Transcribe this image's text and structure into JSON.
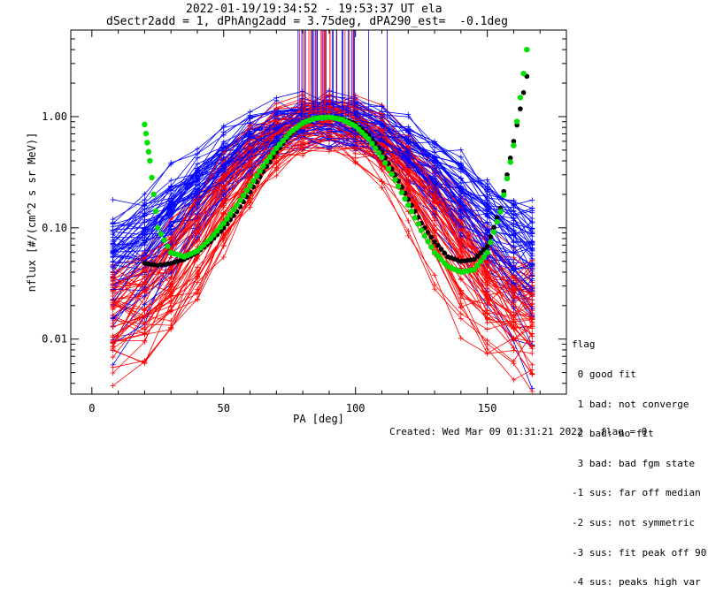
{
  "chart_data": {
    "type": "line",
    "title_line1": "2022-01-19/19:34:52 - 19:53:37 UT ela",
    "title_line2": "dSectr2add = 1, dPhAng2add = 3.75deg, dPA290_est=  -0.1deg",
    "xlabel": "PA [deg]",
    "ylabel": "nflux [#/(cm^2 s sr MeV)]",
    "xlim": [
      -8,
      180
    ],
    "ylim": [
      0.0032,
      6.0
    ],
    "yscale": "log",
    "x_ticks": [
      0,
      50,
      100,
      150
    ],
    "x_tick_labels": [
      "0",
      "50",
      "100",
      "150"
    ],
    "y_ticks": [
      0.01,
      0.1,
      1.0
    ],
    "y_tick_labels": [
      "0.01",
      "0.10",
      "1.00"
    ],
    "colors": {
      "red_series": "#ff0000",
      "blue_series": "#0000ff",
      "black_fit": "#000000",
      "green_fit": "#00e000"
    },
    "series": [
      {
        "color": "black",
        "style": "dots",
        "x": [
          20,
          25,
          30,
          35,
          40,
          45,
          50,
          55,
          60,
          65,
          70,
          75,
          80,
          85,
          90,
          95,
          100,
          105,
          110,
          115,
          120,
          125,
          130,
          135,
          140,
          145,
          150,
          155,
          160,
          165
        ],
        "y": [
          0.048,
          0.046,
          0.048,
          0.052,
          0.06,
          0.075,
          0.1,
          0.14,
          0.21,
          0.32,
          0.48,
          0.68,
          0.88,
          0.98,
          0.99,
          0.96,
          0.86,
          0.68,
          0.48,
          0.3,
          0.18,
          0.11,
          0.075,
          0.055,
          0.05,
          0.052,
          0.068,
          0.15,
          0.6,
          2.3
        ]
      },
      {
        "color": "green",
        "style": "dots",
        "x": [
          20,
          22,
          25,
          30,
          35,
          40,
          45,
          50,
          55,
          60,
          65,
          70,
          75,
          80,
          85,
          90,
          95,
          100,
          105,
          110,
          115,
          120,
          125,
          130,
          135,
          140,
          145,
          150,
          155,
          160,
          165
        ],
        "y": [
          0.85,
          0.4,
          0.1,
          0.06,
          0.055,
          0.062,
          0.08,
          0.11,
          0.16,
          0.24,
          0.36,
          0.52,
          0.71,
          0.88,
          0.97,
          0.99,
          0.94,
          0.82,
          0.63,
          0.43,
          0.27,
          0.16,
          0.095,
          0.06,
          0.045,
          0.04,
          0.042,
          0.06,
          0.14,
          0.55,
          4.0
        ]
      }
    ],
    "legend": {
      "title": "flag",
      "entries": [
        " 0 good fit",
        " 1 bad: not converge",
        " 2 bad: no fit",
        " 3 bad: bad fgm state",
        "-1 sus: far off median",
        "-2 sus: not symmetric",
        "-3 sus: fit peak off 90",
        "-4 sus: peaks high var"
      ],
      "placement": "right"
    },
    "footer": "Created: Wed Mar 09 01:31:21 2022   flag = 0"
  }
}
